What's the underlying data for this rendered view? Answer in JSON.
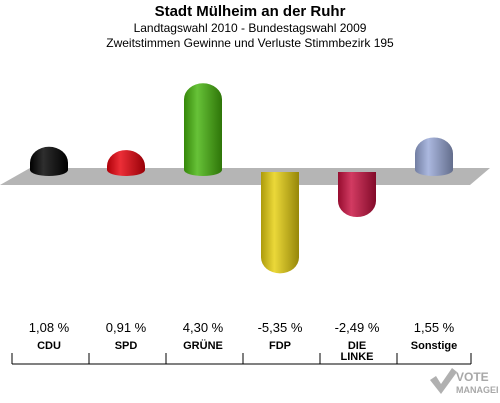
{
  "title": "Stadt Mülheim an der Ruhr",
  "subtitle1": "Landtagswahl 2010 - Bundestagswahl 2009",
  "subtitle2": "Zweitstimmen Gewinne und Verluste Stimmbezirk 195",
  "logo": {
    "text1": "VOTE",
    "text2": "MANAGER"
  },
  "chart_data": {
    "type": "bar",
    "title": "Stadt Mülheim an der Ruhr",
    "subtitle": "Landtagswahl 2010 - Bundestagswahl 2009 / Zweitstimmen Gewinne und Verluste Stimmbezirk 195",
    "categories": [
      "CDU",
      "SPD",
      "GRÜNE",
      "FDP",
      "DIE LINKE",
      "Sonstige"
    ],
    "category_lines": [
      [
        "CDU"
      ],
      [
        "SPD"
      ],
      [
        "GRÜNE"
      ],
      [
        "FDP"
      ],
      [
        "DIE",
        "LINKE"
      ],
      [
        "Sonstige"
      ]
    ],
    "values": [
      1.08,
      0.91,
      4.3,
      -5.35,
      -2.49,
      1.55
    ],
    "value_labels": [
      "1,08 %",
      "0,91 %",
      "4,30 %",
      "-5,35 %",
      "-2,49 %",
      "1,55 %"
    ],
    "colors": [
      "#000000",
      "#e8000b",
      "#46b40c",
      "#e6cf0e",
      "#c8103f",
      "#98a8d8"
    ],
    "ylim": [
      -5.35,
      4.3
    ],
    "grid": false,
    "legend": "none"
  }
}
